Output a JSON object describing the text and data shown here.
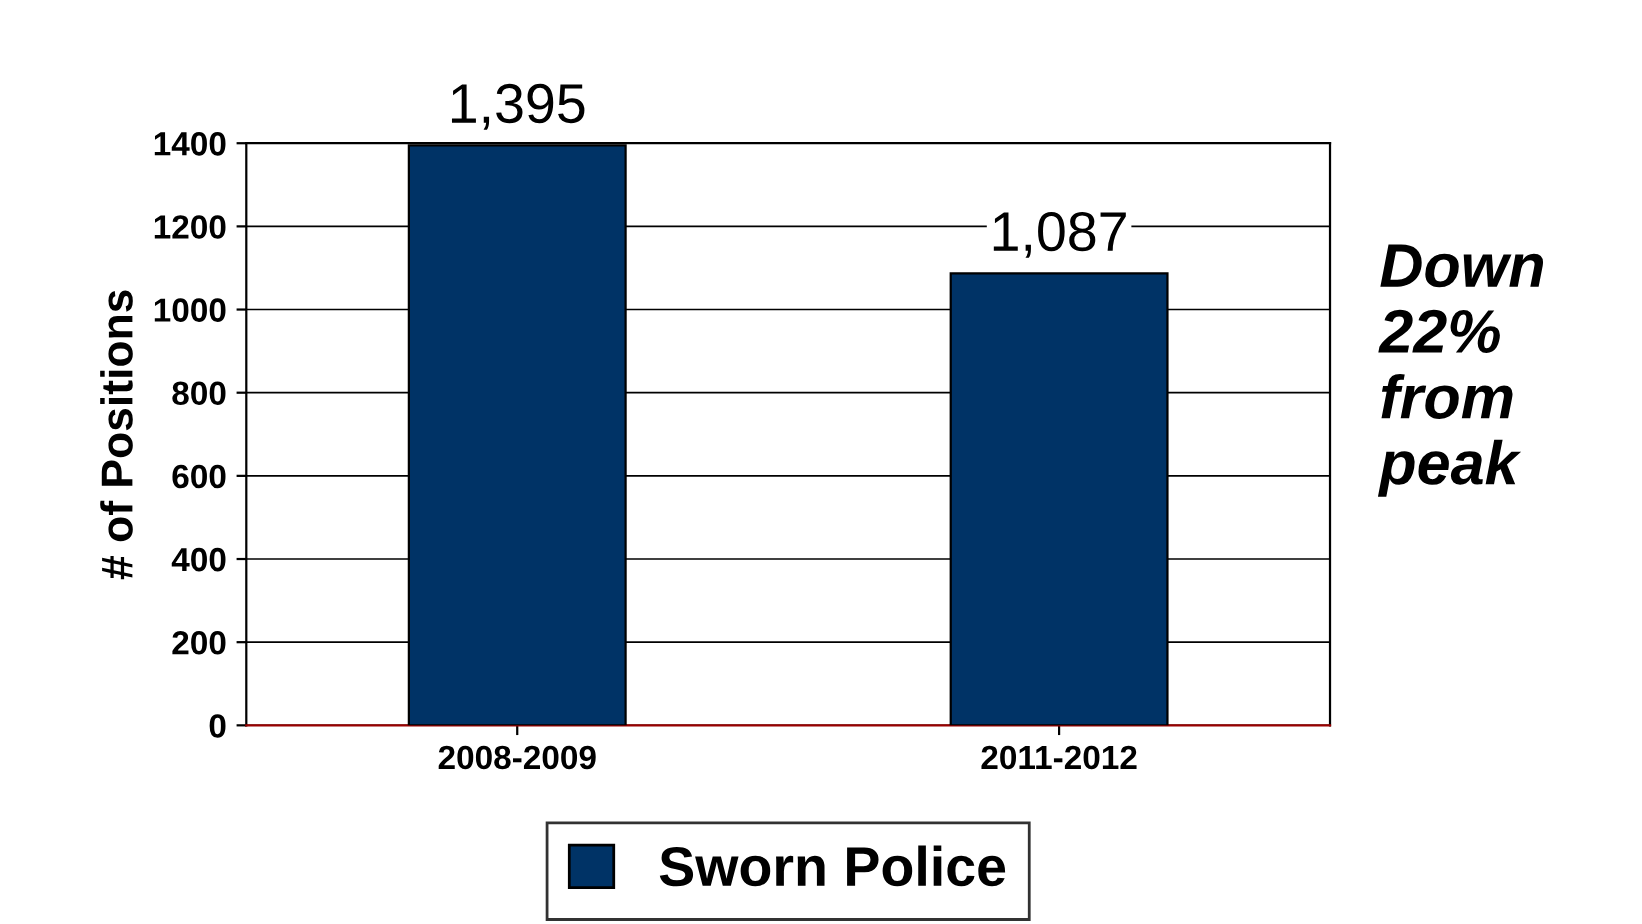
{
  "chart_data": {
    "type": "bar",
    "ylabel": "# of Positions",
    "categories": [
      "2008-2009",
      "2011-2012"
    ],
    "series": [
      {
        "name": "Sworn Police",
        "color": "#003366",
        "values": [
          1395,
          1087
        ],
        "value_labels": [
          "1,395",
          "1,087"
        ]
      }
    ],
    "ylim": [
      0,
      1400
    ],
    "yticks": [
      0,
      200,
      400,
      600,
      800,
      1000,
      1200,
      1400
    ],
    "grid": "y",
    "legend": "bottom",
    "annotations": [
      "Down\n22%\nfrom\npeak"
    ]
  }
}
